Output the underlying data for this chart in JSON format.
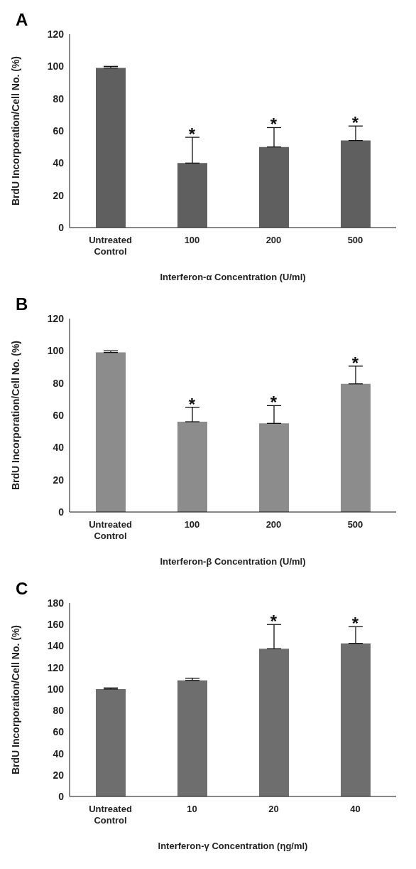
{
  "chart_data": [
    {
      "type": "bar",
      "title": "A",
      "xlabel": "Interferon-α Concentration (U/ml)",
      "ylabel": "BrdU Incorporation/Cell No. (%)",
      "categories": [
        "Untreated Control",
        "100",
        "200",
        "500"
      ],
      "values": [
        99,
        40,
        50,
        54
      ],
      "errors": [
        1,
        16,
        12,
        9
      ],
      "color": "#5f5f5f",
      "ylim": [
        0,
        120
      ],
      "yticks": [
        0,
        20,
        40,
        60,
        80,
        100,
        120
      ],
      "grid": false,
      "annotations": [
        {
          "text": "*",
          "x": "100",
          "y": 56
        },
        {
          "text": "*",
          "x": "200",
          "y": 62
        },
        {
          "text": "*",
          "x": "500",
          "y": 63
        }
      ]
    },
    {
      "type": "bar",
      "title": "B",
      "xlabel": "Interferon-β Concentration (U/ml)",
      "ylabel": "BrdU Incorporation/Cell No. (%)",
      "categories": [
        "Untreated Control",
        "100",
        "200",
        "500"
      ],
      "values": [
        99,
        56,
        55,
        79.5
      ],
      "errors": [
        1,
        9,
        11,
        11
      ],
      "color": "#8c8c8c",
      "ylim": [
        0,
        120
      ],
      "yticks": [
        0,
        20,
        40,
        60,
        80,
        100,
        120
      ],
      "grid": false,
      "annotations": [
        {
          "text": "*",
          "x": "100",
          "y": 65
        },
        {
          "text": "*",
          "x": "200",
          "y": 66
        },
        {
          "text": "*",
          "x": "500",
          "y": 90.5
        }
      ]
    },
    {
      "type": "bar",
      "title": "C",
      "xlabel": "Interferon-γ Concentration (ηg/ml)",
      "ylabel": "BrdU Incorporation/Cell No. (%)",
      "categories": [
        "Untreated Control",
        "10",
        "20",
        "40"
      ],
      "values": [
        100,
        108,
        137.5,
        142.5
      ],
      "errors": [
        1,
        2,
        22.5,
        15.5
      ],
      "color": "#6e6e6e",
      "ylim": [
        0,
        180
      ],
      "yticks": [
        0,
        20,
        40,
        60,
        80,
        100,
        120,
        140,
        160,
        180
      ],
      "grid": false,
      "annotations": [
        {
          "text": "*",
          "x": "20",
          "y": 160
        },
        {
          "text": "*",
          "x": "40",
          "y": 158
        }
      ]
    }
  ]
}
